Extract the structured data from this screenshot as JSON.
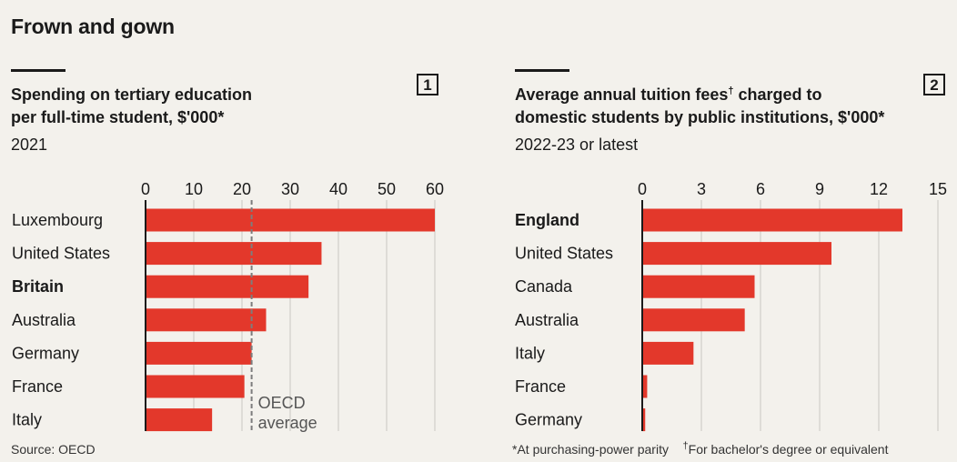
{
  "title": "Frown and gown",
  "chart_data": [
    {
      "type": "bar",
      "orientation": "horizontal",
      "badge": "1",
      "title_lines": [
        "Spending on tertiary education",
        "per full-time student, $'000*"
      ],
      "subtitle": "2021",
      "categories": [
        "Luxembourg",
        "United States",
        "Britain",
        "Australia",
        "Germany",
        "France",
        "Italy"
      ],
      "highlight": "Britain",
      "values": [
        60,
        36.5,
        33.8,
        25,
        22,
        20.5,
        13.8
      ],
      "xticks": [
        0,
        10,
        20,
        30,
        40,
        50,
        60
      ],
      "xlim": [
        0,
        60
      ],
      "grid": true,
      "reference_line": {
        "value": 22,
        "label_lines": [
          "OECD",
          "average"
        ]
      },
      "bar_color": "#e3382b",
      "source": "Source: OECD"
    },
    {
      "type": "bar",
      "orientation": "horizontal",
      "badge": "2",
      "title_lines": [
        "Average annual tuition fees",
        "domestic students by public institutions, $'000*"
      ],
      "title_sup": "†",
      "title_suffix": " charged to",
      "subtitle": "2022-23 or latest",
      "categories": [
        "England",
        "United States",
        "Canada",
        "Australia",
        "Italy",
        "France",
        "Germany"
      ],
      "highlight": "England",
      "values": [
        13.2,
        9.6,
        5.7,
        5.2,
        2.6,
        0.25,
        0.15
      ],
      "xticks": [
        0,
        3,
        6,
        9,
        12,
        15
      ],
      "xlim": [
        0,
        15
      ],
      "grid": true,
      "bar_color": "#e3382b",
      "note_a": "*At purchasing-power parity",
      "note_b_sup": "†",
      "note_b": "For bachelor's degree or equivalent"
    }
  ]
}
